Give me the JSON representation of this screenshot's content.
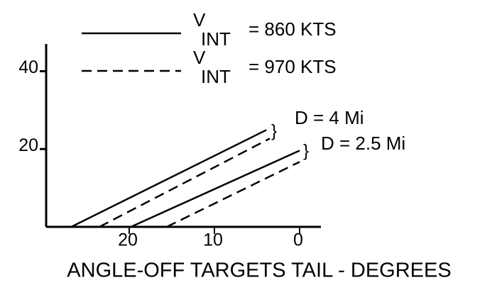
{
  "chart_data": {
    "type": "line",
    "xlabel": "ANGLE-OFF TARGETS TAIL - DEGREES",
    "xlim": [
      30,
      0
    ],
    "xticks": [
      20,
      10,
      0
    ],
    "ylim": [
      0,
      47
    ],
    "yticks": [
      20,
      40
    ],
    "legend": [
      {
        "symbol": "V",
        "subscript": "INT",
        "label": "= 860 KTS",
        "style": "solid"
      },
      {
        "symbol": "V",
        "subscript": "INT",
        "label": "= 970 KTS",
        "style": "dashed"
      }
    ],
    "series": [
      {
        "name": "D = 4 Mi",
        "lines": [
          {
            "style": "solid",
            "x": [
              26.8,
              3.9
            ],
            "values": [
              0,
              24.9
            ]
          },
          {
            "style": "dashed",
            "x": [
              23.5,
              3.5
            ],
            "values": [
              0,
              22.7
            ]
          }
        ]
      },
      {
        "name": "D = 2.5 Mi",
        "lines": [
          {
            "style": "solid",
            "x": [
              19.8,
              0
            ],
            "values": [
              0,
              19.6
            ]
          },
          {
            "style": "dashed",
            "x": [
              15.6,
              0
            ],
            "values": [
              0,
              16.7
            ]
          }
        ]
      }
    ],
    "color": "#000000"
  }
}
